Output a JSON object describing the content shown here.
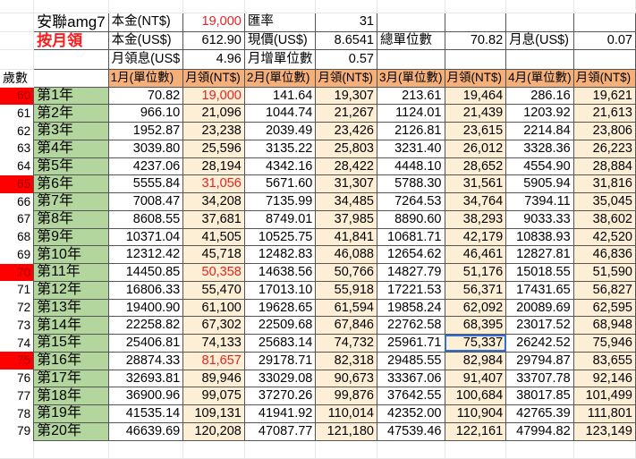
{
  "sheet": {
    "info": {
      "product_name": "安聯amg7",
      "mode_label": "按月領",
      "principal_ntd_label": "本金(NT$)",
      "principal_ntd_value": "19,000",
      "exchange_rate_label": "匯率",
      "exchange_rate_value": "31",
      "principal_usd_label": "本金(US$)",
      "principal_usd_value": "612.90",
      "price_label": "現價(US$)",
      "price_value": "8.6541",
      "total_units_label": "總單位數",
      "total_units_value": "70.82",
      "monthly_interest_label": "月息(US$)",
      "monthly_interest_value": "0.07",
      "monthly_dividend_label": "月領息(US$",
      "monthly_dividend_value": "4.96",
      "monthly_unit_increase_label": "月增單位數",
      "monthly_unit_increase_value": "0.57"
    },
    "header": {
      "age_label": "歲數",
      "columns": [
        "1月(單位數)",
        "月領(NT$)",
        "2月(單位數)",
        "月領(NT$)",
        "3月(單位數)",
        "月領(NT$)",
        "4月(單位數)",
        "月領(NT$)"
      ]
    },
    "colors": {
      "header_orange": "#f5b07a",
      "year_green": "#b3d59e",
      "payout_cream": "#fcefd6",
      "highlight_red": "#fe0000",
      "text_red": "#e8221f",
      "selection_blue": "#2f6fd6"
    },
    "selected_cell": {
      "row_age": "74",
      "column": "3月 月領(NT$)",
      "value": "75,337"
    },
    "rows": [
      {
        "age": "60",
        "year": "第1年",
        "highlight": true,
        "v": [
          "70.82",
          "19,000",
          "141.64",
          "19,307",
          "213.61",
          "19,464",
          "286.16",
          "19,621"
        ]
      },
      {
        "age": "61",
        "year": "第2年",
        "highlight": false,
        "v": [
          "966.10",
          "21,096",
          "1044.74",
          "21,267",
          "1124.01",
          "21,439",
          "1203.92",
          "21,613"
        ]
      },
      {
        "age": "62",
        "year": "第3年",
        "highlight": false,
        "v": [
          "1952.87",
          "23,238",
          "2039.49",
          "23,426",
          "2126.81",
          "23,615",
          "2214.84",
          "23,806"
        ]
      },
      {
        "age": "63",
        "year": "第4年",
        "highlight": false,
        "v": [
          "3039.80",
          "25,596",
          "3135.22",
          "25,803",
          "3231.40",
          "26,012",
          "3328.36",
          "26,223"
        ]
      },
      {
        "age": "64",
        "year": "第5年",
        "highlight": false,
        "v": [
          "4237.06",
          "28,194",
          "4342.16",
          "28,422",
          "4448.10",
          "28,652",
          "4554.90",
          "28,884"
        ]
      },
      {
        "age": "65",
        "year": "第6年",
        "highlight": true,
        "v": [
          "5555.84",
          "31,056",
          "5671.60",
          "31,307",
          "5788.30",
          "31,561",
          "5905.94",
          "31,816"
        ]
      },
      {
        "age": "66",
        "year": "第7年",
        "highlight": false,
        "v": [
          "7008.47",
          "34,208",
          "7135.99",
          "34,485",
          "7264.53",
          "34,764",
          "7394.11",
          "35,045"
        ]
      },
      {
        "age": "67",
        "year": "第8年",
        "highlight": false,
        "v": [
          "8608.55",
          "37,681",
          "8749.01",
          "37,985",
          "8890.60",
          "38,293",
          "9033.33",
          "38,602"
        ]
      },
      {
        "age": "68",
        "year": "第9年",
        "highlight": false,
        "v": [
          "10371.04",
          "41,505",
          "10525.75",
          "41,841",
          "10681.71",
          "42,179",
          "10838.93",
          "42,520"
        ]
      },
      {
        "age": "69",
        "year": "第10年",
        "highlight": false,
        "v": [
          "12312.42",
          "45,718",
          "12482.83",
          "46,088",
          "12654.62",
          "46,461",
          "12827.81",
          "46,836"
        ]
      },
      {
        "age": "70",
        "year": "第11年",
        "highlight": true,
        "v": [
          "14450.85",
          "50,358",
          "14638.56",
          "50,766",
          "14827.79",
          "51,176",
          "15018.55",
          "51,590"
        ]
      },
      {
        "age": "71",
        "year": "第12年",
        "highlight": false,
        "v": [
          "16806.33",
          "55,470",
          "17013.10",
          "55,918",
          "17221.53",
          "56,371",
          "17431.65",
          "56,827"
        ]
      },
      {
        "age": "72",
        "year": "第13年",
        "highlight": false,
        "v": [
          "19400.90",
          "61,100",
          "19628.65",
          "61,594",
          "19858.24",
          "62,092",
          "20089.69",
          "62,595"
        ]
      },
      {
        "age": "73",
        "year": "第14年",
        "highlight": false,
        "v": [
          "22258.82",
          "67,302",
          "22509.68",
          "67,846",
          "22762.58",
          "68,395",
          "23017.52",
          "68,948"
        ]
      },
      {
        "age": "74",
        "year": "第15年",
        "highlight": false,
        "v": [
          "25406.81",
          "74,133",
          "25683.14",
          "74,732",
          "25961.71",
          "75,337",
          "26242.52",
          "75,946"
        ]
      },
      {
        "age": "75",
        "year": "第16年",
        "highlight": true,
        "v": [
          "28874.33",
          "81,657",
          "29178.71",
          "82,318",
          "29485.55",
          "82,984",
          "29794.87",
          "83,655"
        ]
      },
      {
        "age": "76",
        "year": "第17年",
        "highlight": false,
        "v": [
          "32693.81",
          "89,946",
          "33029.08",
          "90,673",
          "33367.06",
          "91,407",
          "33707.78",
          "92,146"
        ]
      },
      {
        "age": "77",
        "year": "第18年",
        "highlight": false,
        "v": [
          "36900.96",
          "99,075",
          "37270.26",
          "99,876",
          "37642.55",
          "100,684",
          "38017.85",
          "101,499"
        ]
      },
      {
        "age": "78",
        "year": "第19年",
        "highlight": false,
        "v": [
          "41535.14",
          "109,131",
          "41941.92",
          "110,014",
          "42352.00",
          "110,904",
          "42765.39",
          "111,801"
        ]
      },
      {
        "age": "79",
        "year": "第20年",
        "highlight": false,
        "v": [
          "46639.69",
          "120,208",
          "47087.77",
          "121,180",
          "47539.46",
          "122,161",
          "47994.82",
          "123,149"
        ]
      }
    ]
  }
}
